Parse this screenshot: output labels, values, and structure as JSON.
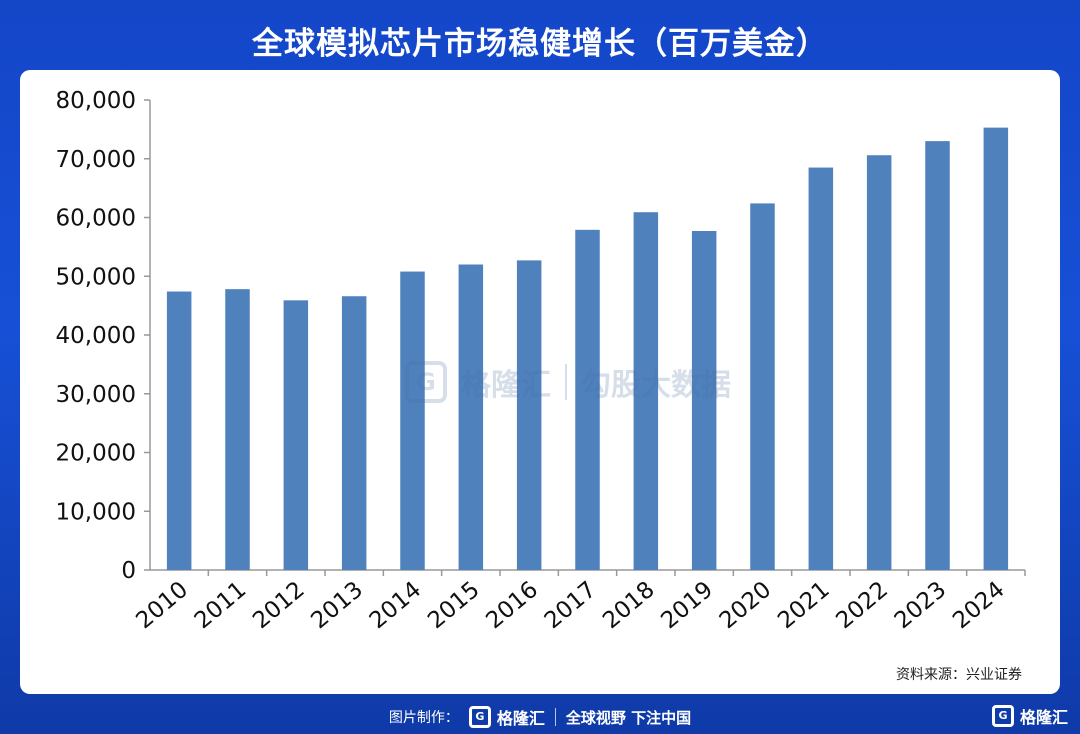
{
  "title": "全球模拟芯片市场稳健增长（百万美金）",
  "source": "资料来源：兴业证券",
  "watermark": {
    "brand": "格隆汇",
    "brand2": "勾股大数据"
  },
  "footer": {
    "credit": "图片制作：",
    "brand": "格隆汇",
    "slogan": "全球视野 下注中国"
  },
  "corner_brand": "格隆汇",
  "colors": {
    "background": "#1750d6",
    "bar": "#4f81bd",
    "axis": "#999999"
  },
  "chart_data": {
    "type": "bar",
    "title": "全球模拟芯片市场稳健增长（百万美金）",
    "categories": [
      "2010",
      "2011",
      "2012",
      "2013",
      "2014",
      "2015",
      "2016",
      "2017",
      "2018",
      "2019",
      "2020",
      "2021",
      "2022",
      "2023",
      "2024"
    ],
    "values": [
      47400,
      47800,
      45900,
      46600,
      50800,
      52000,
      52700,
      57900,
      60900,
      57700,
      62400,
      68500,
      70600,
      73000,
      75300
    ],
    "xlabel": "",
    "ylabel": "",
    "ylim": [
      0,
      80000
    ],
    "yticks": [
      0,
      10000,
      20000,
      30000,
      40000,
      50000,
      60000,
      70000,
      80000
    ],
    "ytick_labels": [
      "0",
      "10,000",
      "20,000",
      "30,000",
      "40,000",
      "50,000",
      "60,000",
      "70,000",
      "80,000"
    ],
    "grid": false,
    "legend": "none"
  }
}
